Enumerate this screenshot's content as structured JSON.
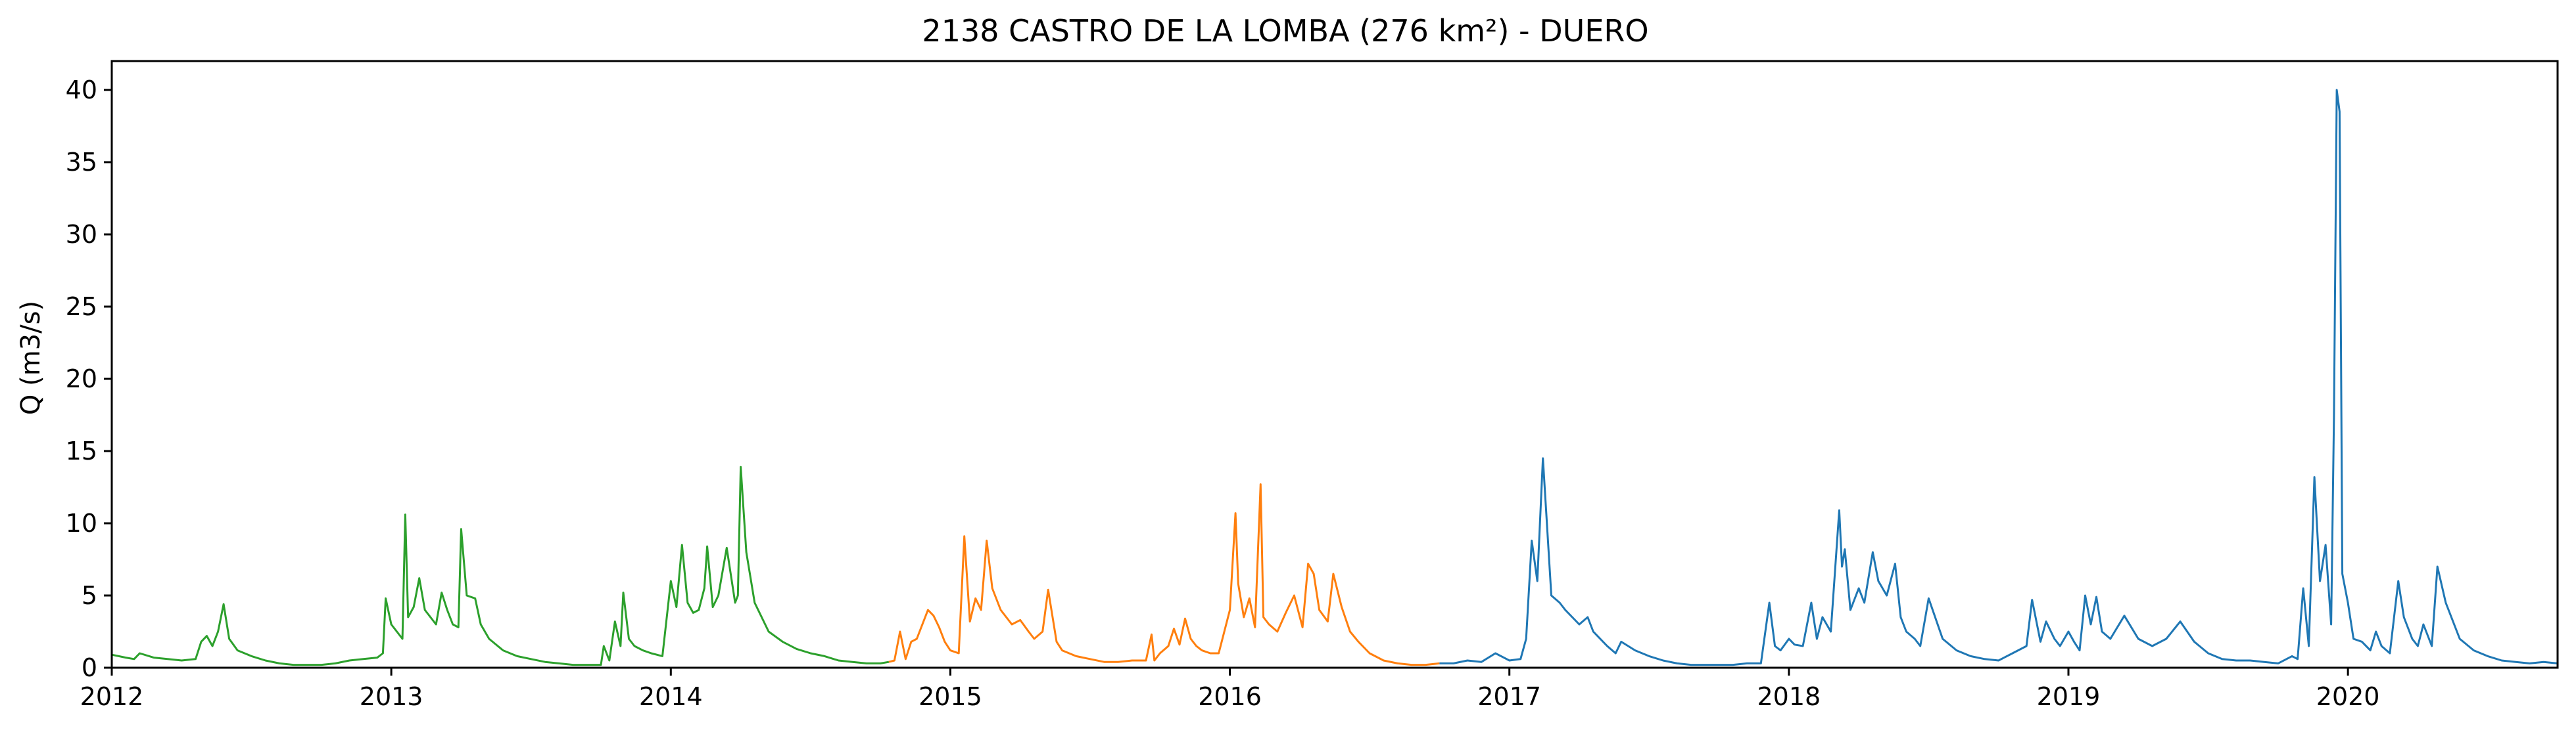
{
  "chart_data": {
    "type": "line",
    "title": "2138 CASTRO DE LA LOMBA (276 km²) - DUERO",
    "xlabel": "",
    "ylabel": "Q (m3/s)",
    "xlim": [
      2012.0,
      2020.75
    ],
    "ylim": [
      0,
      42
    ],
    "grid": false,
    "x_ticks": [
      "2012",
      "2013",
      "2014",
      "2015",
      "2016",
      "2017",
      "2018",
      "2019",
      "2020"
    ],
    "y_ticks": [
      "0",
      "5",
      "10",
      "15",
      "20",
      "25",
      "30",
      "35",
      "40"
    ],
    "series": [
      {
        "color": "#2ca02c",
        "x": [
          2012.0,
          2012.05,
          2012.08,
          2012.1,
          2012.15,
          2012.2,
          2012.25,
          2012.3,
          2012.32,
          2012.34,
          2012.36,
          2012.38,
          2012.4,
          2012.42,
          2012.45,
          2012.5,
          2012.55,
          2012.6,
          2012.65,
          2012.7,
          2012.75,
          2012.8,
          2012.85,
          2012.9,
          2012.95,
          2012.97,
          2012.98,
          2013.0,
          2013.02,
          2013.04,
          2013.05,
          2013.06,
          2013.08,
          2013.1,
          2013.12,
          2013.14,
          2013.16,
          2013.18,
          2013.2,
          2013.22,
          2013.24,
          2013.25,
          2013.27,
          2013.3,
          2013.32,
          2013.35,
          2013.4,
          2013.45,
          2013.5,
          2013.55,
          2013.6,
          2013.65,
          2013.7,
          2013.75,
          2013.76,
          2013.78,
          2013.8,
          2013.82,
          2013.83,
          2013.85,
          2013.87,
          2013.9,
          2013.93,
          2013.95,
          2013.97,
          2014.0,
          2014.02,
          2014.04,
          2014.06,
          2014.08,
          2014.1,
          2014.12,
          2014.13,
          2014.15,
          2014.17,
          2014.2,
          2014.23,
          2014.24,
          2014.25,
          2014.27,
          2014.3,
          2014.35,
          2014.4,
          2014.45,
          2014.5,
          2014.55,
          2014.6,
          2014.65,
          2014.7,
          2014.75,
          2014.78
        ],
        "y": [
          0.9,
          0.7,
          0.6,
          1.0,
          0.7,
          0.6,
          0.5,
          0.6,
          1.8,
          2.2,
          1.5,
          2.5,
          4.4,
          2.0,
          1.2,
          0.8,
          0.5,
          0.3,
          0.2,
          0.2,
          0.2,
          0.3,
          0.5,
          0.6,
          0.7,
          1.0,
          4.8,
          3.0,
          2.5,
          2.0,
          10.6,
          3.5,
          4.2,
          6.2,
          4.0,
          3.5,
          3.0,
          5.2,
          4.0,
          3.0,
          2.8,
          9.6,
          5.0,
          4.8,
          3.0,
          2.0,
          1.2,
          0.8,
          0.6,
          0.4,
          0.3,
          0.2,
          0.2,
          0.2,
          1.5,
          0.5,
          3.2,
          1.5,
          5.2,
          2.0,
          1.5,
          1.2,
          1.0,
          0.9,
          0.8,
          6.0,
          4.2,
          8.5,
          4.5,
          3.8,
          4.0,
          5.5,
          8.4,
          4.2,
          5.0,
          8.3,
          4.5,
          5.0,
          13.9,
          8.0,
          4.5,
          2.5,
          1.8,
          1.3,
          1.0,
          0.8,
          0.5,
          0.4,
          0.3,
          0.3,
          0.4
        ]
      },
      {
        "color": "#ff7f0e",
        "x": [
          2014.78,
          2014.8,
          2014.82,
          2014.84,
          2014.86,
          2014.88,
          2014.9,
          2014.92,
          2014.94,
          2014.96,
          2014.98,
          2015.0,
          2015.03,
          2015.05,
          2015.07,
          2015.09,
          2015.11,
          2015.13,
          2015.15,
          2015.18,
          2015.2,
          2015.22,
          2015.25,
          2015.28,
          2015.3,
          2015.33,
          2015.35,
          2015.38,
          2015.4,
          2015.45,
          2015.5,
          2015.55,
          2015.6,
          2015.65,
          2015.7,
          2015.72,
          2015.73,
          2015.75,
          2015.78,
          2015.8,
          2015.82,
          2015.84,
          2015.86,
          2015.88,
          2015.9,
          2015.93,
          2015.96,
          2016.0,
          2016.02,
          2016.03,
          2016.05,
          2016.07,
          2016.09,
          2016.11,
          2016.12,
          2016.14,
          2016.17,
          2016.2,
          2016.23,
          2016.26,
          2016.28,
          2016.3,
          2016.32,
          2016.35,
          2016.37,
          2016.4,
          2016.43,
          2016.46,
          2016.5,
          2016.55,
          2016.6,
          2016.65,
          2016.7,
          2016.75
        ],
        "y": [
          0.4,
          0.5,
          2.5,
          0.6,
          1.8,
          2.0,
          3.0,
          4.0,
          3.6,
          2.8,
          1.8,
          1.2,
          1.0,
          9.1,
          3.2,
          4.8,
          4.0,
          8.8,
          5.5,
          4.0,
          3.5,
          3.0,
          3.3,
          2.5,
          2.0,
          2.5,
          5.4,
          1.8,
          1.2,
          0.8,
          0.6,
          0.4,
          0.4,
          0.5,
          0.5,
          2.3,
          0.5,
          1.0,
          1.5,
          2.7,
          1.6,
          3.4,
          2.0,
          1.5,
          1.2,
          1.0,
          1.0,
          4.0,
          10.7,
          5.8,
          3.5,
          4.8,
          2.8,
          12.7,
          3.5,
          3.0,
          2.5,
          3.8,
          5.0,
          2.8,
          7.2,
          6.5,
          4.0,
          3.2,
          6.5,
          4.2,
          2.5,
          1.8,
          1.0,
          0.5,
          0.3,
          0.2,
          0.2,
          0.3
        ]
      },
      {
        "color": "#1f77b4",
        "x": [
          2016.75,
          2016.8,
          2016.85,
          2016.9,
          2016.95,
          2017.0,
          2017.04,
          2017.06,
          2017.08,
          2017.1,
          2017.12,
          2017.15,
          2017.18,
          2017.2,
          2017.25,
          2017.28,
          2017.3,
          2017.35,
          2017.38,
          2017.4,
          2017.45,
          2017.5,
          2017.55,
          2017.6,
          2017.65,
          2017.7,
          2017.75,
          2017.8,
          2017.85,
          2017.9,
          2017.93,
          2017.95,
          2017.97,
          2018.0,
          2018.02,
          2018.05,
          2018.08,
          2018.1,
          2018.12,
          2018.15,
          2018.18,
          2018.19,
          2018.2,
          2018.22,
          2018.25,
          2018.27,
          2018.3,
          2018.32,
          2018.35,
          2018.38,
          2018.4,
          2018.42,
          2018.45,
          2018.47,
          2018.5,
          2018.55,
          2018.6,
          2018.65,
          2018.7,
          2018.75,
          2018.8,
          2018.85,
          2018.87,
          2018.9,
          2018.92,
          2018.95,
          2018.97,
          2019.0,
          2019.02,
          2019.04,
          2019.06,
          2019.08,
          2019.1,
          2019.12,
          2019.15,
          2019.2,
          2019.25,
          2019.3,
          2019.35,
          2019.4,
          2019.45,
          2019.5,
          2019.55,
          2019.6,
          2019.65,
          2019.7,
          2019.75,
          2019.8,
          2019.82,
          2019.84,
          2019.86,
          2019.88,
          2019.9,
          2019.92,
          2019.94,
          2019.95,
          2019.96,
          2019.97,
          2019.98,
          2020.0,
          2020.02,
          2020.05,
          2020.08,
          2020.1,
          2020.12,
          2020.15,
          2020.18,
          2020.2,
          2020.23,
          2020.25,
          2020.27,
          2020.3,
          2020.32,
          2020.35,
          2020.4,
          2020.45,
          2020.5,
          2020.55,
          2020.6,
          2020.65,
          2020.7,
          2020.75
        ],
        "y": [
          0.3,
          0.3,
          0.5,
          0.4,
          1.0,
          0.5,
          0.6,
          2.0,
          8.8,
          6.0,
          14.5,
          5.0,
          4.5,
          4.0,
          3.0,
          3.5,
          2.5,
          1.5,
          1.0,
          1.8,
          1.2,
          0.8,
          0.5,
          0.3,
          0.2,
          0.2,
          0.2,
          0.2,
          0.3,
          0.3,
          4.5,
          1.5,
          1.2,
          2.0,
          1.6,
          1.5,
          4.5,
          2.0,
          3.5,
          2.5,
          10.9,
          7.0,
          8.2,
          4.0,
          5.5,
          4.5,
          8.0,
          6.0,
          5.0,
          7.2,
          3.5,
          2.5,
          2.0,
          1.5,
          4.8,
          2.0,
          1.2,
          0.8,
          0.6,
          0.5,
          1.0,
          1.5,
          4.7,
          1.8,
          3.2,
          2.0,
          1.5,
          2.5,
          1.8,
          1.2,
          5.0,
          3.0,
          4.9,
          2.5,
          2.0,
          3.6,
          2.0,
          1.5,
          2.0,
          3.2,
          1.8,
          1.0,
          0.6,
          0.5,
          0.5,
          0.4,
          0.3,
          0.8,
          0.6,
          5.5,
          1.5,
          13.2,
          6.0,
          8.5,
          3.0,
          17.5,
          40.0,
          38.5,
          6.5,
          4.5,
          2.0,
          1.8,
          1.2,
          2.5,
          1.5,
          1.0,
          6.0,
          3.5,
          2.0,
          1.5,
          3.0,
          1.5,
          7.0,
          4.5,
          2.0,
          1.2,
          0.8,
          0.5,
          0.4,
          0.3,
          0.4,
          0.3
        ]
      }
    ]
  }
}
